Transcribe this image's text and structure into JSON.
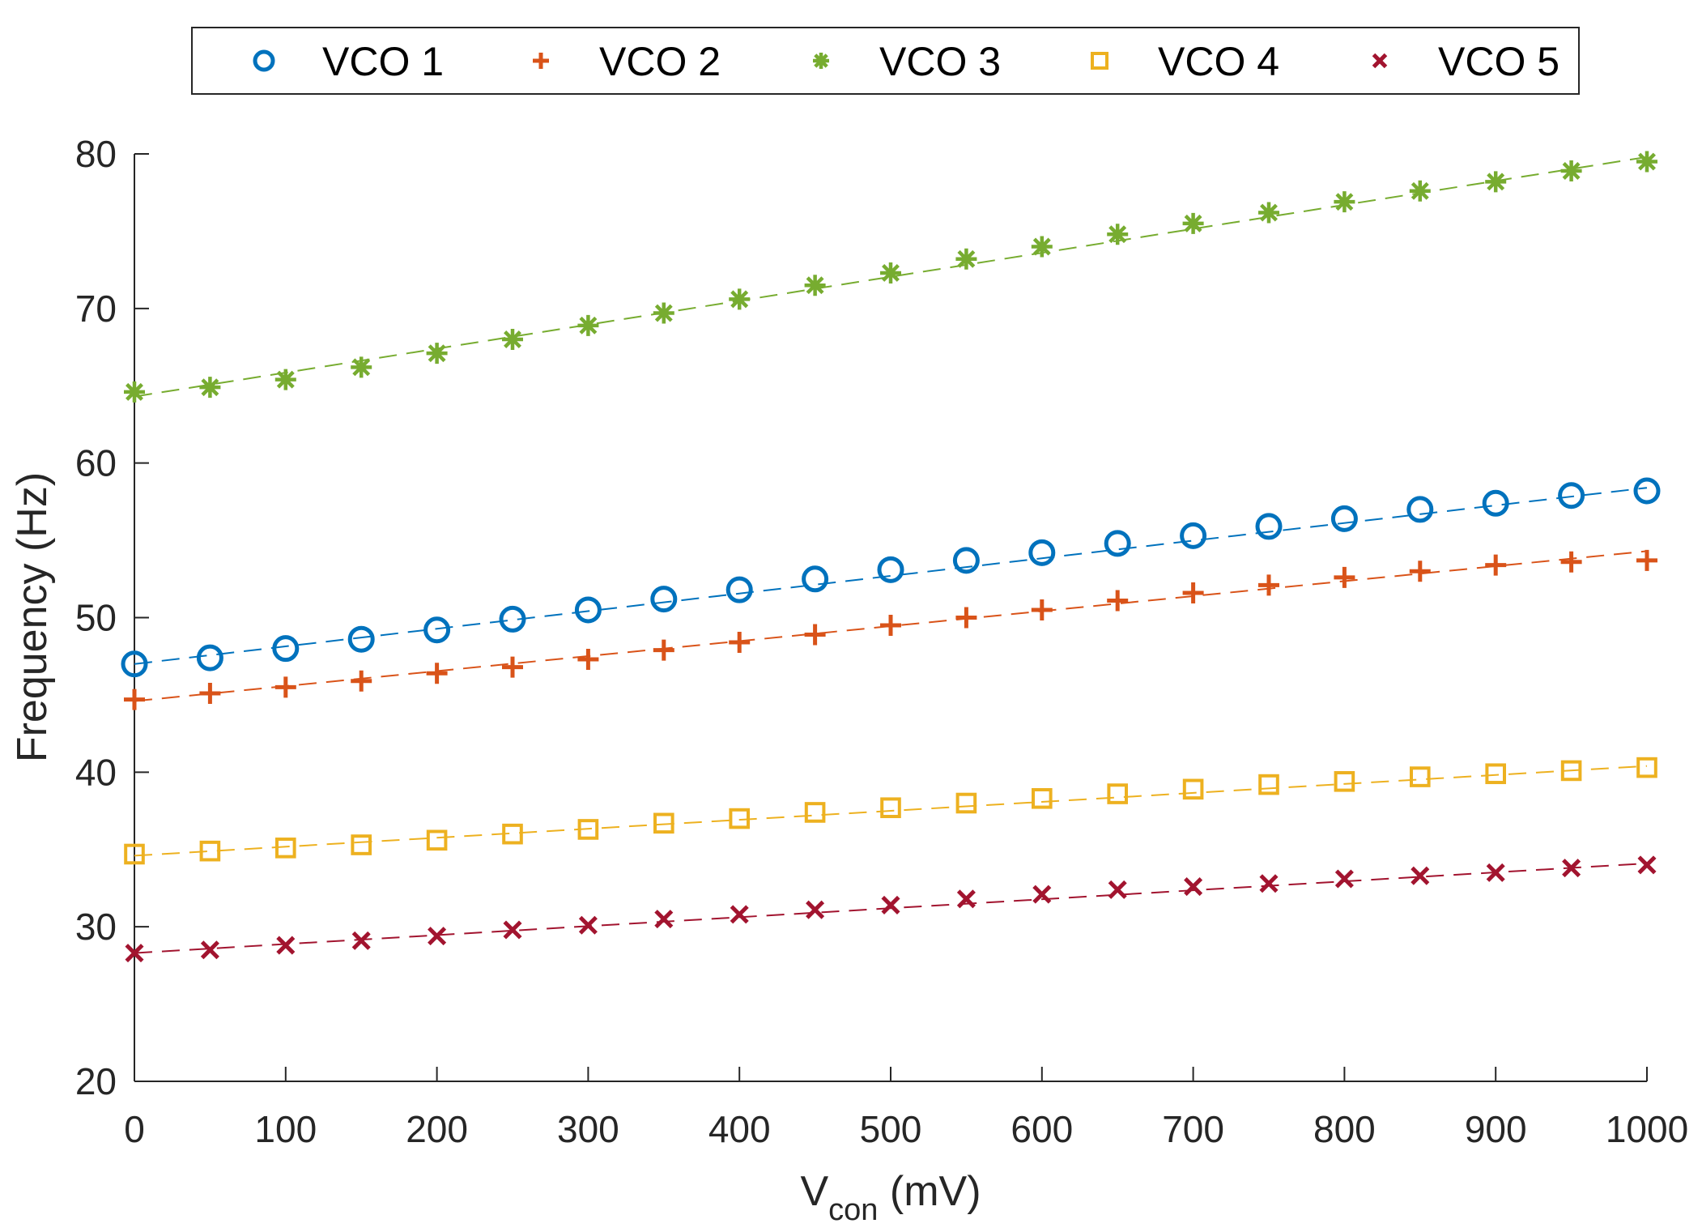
{
  "chart_data": {
    "type": "scatter",
    "title": "",
    "xlabel": {
      "main": "V",
      "sub": "con",
      "unit": " (mV)"
    },
    "ylabel": "Frequency (Hz)",
    "xlim": [
      0,
      1000
    ],
    "ylim": [
      20,
      80
    ],
    "xticks": [
      0,
      100,
      200,
      300,
      400,
      500,
      600,
      700,
      800,
      900,
      1000
    ],
    "yticks": [
      20,
      30,
      40,
      50,
      60,
      70,
      80
    ],
    "xtick_labels": [
      "0",
      "100",
      "200",
      "300",
      "400",
      "500",
      "600",
      "700",
      "800",
      "900",
      "1000"
    ],
    "ytick_labels": [
      "20",
      "30",
      "40",
      "50",
      "60",
      "70",
      "80"
    ],
    "grid": false,
    "legend_position": "top",
    "x": [
      0,
      50,
      100,
      150,
      200,
      250,
      300,
      350,
      400,
      450,
      500,
      550,
      600,
      650,
      700,
      750,
      800,
      850,
      900,
      950,
      1000
    ],
    "series": [
      {
        "name": "VCO 1",
        "marker": "circle",
        "color": "#0072BD",
        "values": [
          47.0,
          47.4,
          48.0,
          48.6,
          49.2,
          49.9,
          50.5,
          51.2,
          51.8,
          52.5,
          53.1,
          53.7,
          54.2,
          54.8,
          55.3,
          55.9,
          56.4,
          57.0,
          57.4,
          57.9,
          58.2
        ],
        "fit": [
          47.0,
          58.4
        ]
      },
      {
        "name": "VCO 2",
        "marker": "plus",
        "color": "#D95319",
        "values": [
          44.7,
          45.1,
          45.5,
          45.9,
          46.4,
          46.8,
          47.3,
          47.9,
          48.4,
          48.9,
          49.5,
          50.0,
          50.5,
          51.1,
          51.6,
          52.1,
          52.6,
          53.0,
          53.4,
          53.6,
          53.7
        ],
        "fit": [
          44.6,
          54.3
        ]
      },
      {
        "name": "VCO 3",
        "marker": "asterisk",
        "color": "#77AC30",
        "values": [
          64.6,
          64.9,
          65.4,
          66.2,
          67.1,
          68.0,
          68.9,
          69.7,
          70.6,
          71.5,
          72.3,
          73.2,
          74.0,
          74.8,
          75.5,
          76.2,
          76.9,
          77.6,
          78.2,
          78.9,
          79.5
        ],
        "fit": [
          64.3,
          79.8
        ]
      },
      {
        "name": "VCO 4",
        "marker": "square",
        "color": "#EDB120",
        "values": [
          34.7,
          34.9,
          35.1,
          35.3,
          35.6,
          36.0,
          36.3,
          36.7,
          37.0,
          37.4,
          37.7,
          38.0,
          38.3,
          38.6,
          38.9,
          39.2,
          39.4,
          39.7,
          39.9,
          40.1,
          40.3
        ],
        "fit": [
          34.6,
          40.4
        ]
      },
      {
        "name": "VCO 5",
        "marker": "cross",
        "color": "#A2142F",
        "values": [
          28.3,
          28.5,
          28.8,
          29.1,
          29.4,
          29.8,
          30.1,
          30.5,
          30.8,
          31.1,
          31.4,
          31.8,
          32.1,
          32.4,
          32.6,
          32.8,
          33.1,
          33.3,
          33.5,
          33.8,
          34.0
        ],
        "fit": [
          28.3,
          34.1
        ]
      }
    ]
  }
}
